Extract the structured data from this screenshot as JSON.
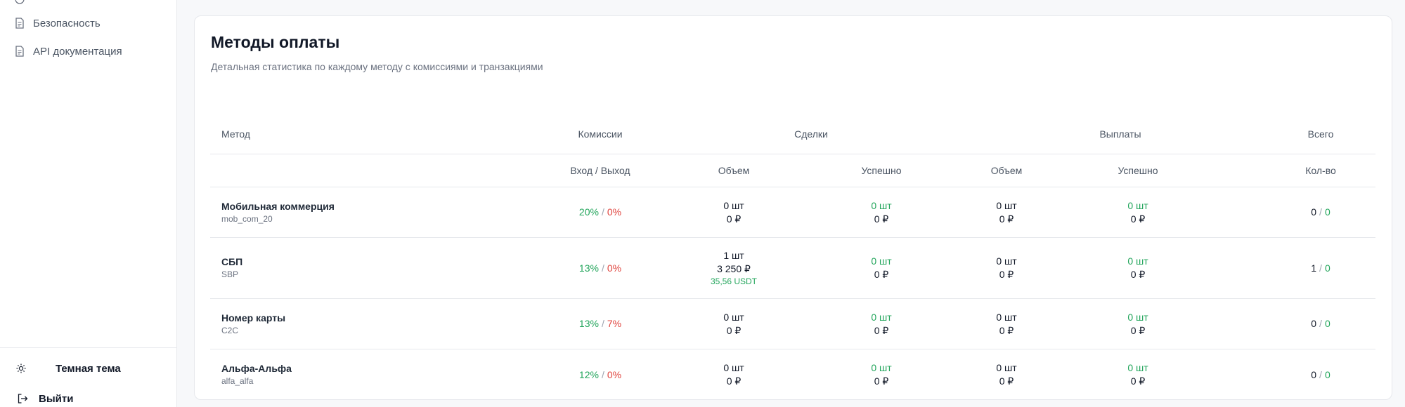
{
  "sidebar": {
    "items": [
      {
        "label": "Безопасность",
        "icon": "file-icon"
      },
      {
        "label": "API документация",
        "icon": "file-icon"
      }
    ],
    "theme_label": "Темная тема",
    "logout_label": "Выйти"
  },
  "card": {
    "title": "Методы оплаты",
    "subtitle": "Детальная статистика по каждому методу с комиссиями и транзакциями"
  },
  "table": {
    "header_groups": [
      "Метод",
      "Комиссии",
      "Сделки",
      "Выплаты",
      "Всего"
    ],
    "sub_headers": [
      "Вход / Выход",
      "Объем",
      "Успешно",
      "Объем",
      "Успешно",
      "Кол-во"
    ],
    "rows": [
      {
        "name": "Мобильная коммерция",
        "code": "mob_com_20",
        "fee_in": "20%",
        "fee_out": "0%",
        "deals_volume": {
          "count": "0 шт",
          "amount": "0 ₽",
          "usdt": ""
        },
        "deals_success": {
          "count": "0 шт",
          "amount": "0 ₽"
        },
        "payouts_volume": {
          "count": "0 шт",
          "amount": "0 ₽"
        },
        "payouts_success": {
          "count": "0 шт",
          "amount": "0 ₽"
        },
        "total_a": "0",
        "total_b": "0"
      },
      {
        "name": "СБП",
        "code": "SBP",
        "fee_in": "13%",
        "fee_out": "0%",
        "deals_volume": {
          "count": "1 шт",
          "amount": "3 250 ₽",
          "usdt": "35,56 USDT"
        },
        "deals_success": {
          "count": "0 шт",
          "amount": "0 ₽"
        },
        "payouts_volume": {
          "count": "0 шт",
          "amount": "0 ₽"
        },
        "payouts_success": {
          "count": "0 шт",
          "amount": "0 ₽"
        },
        "total_a": "1",
        "total_b": "0"
      },
      {
        "name": "Номер карты",
        "code": "C2C",
        "fee_in": "13%",
        "fee_out": "7%",
        "deals_volume": {
          "count": "0 шт",
          "amount": "0 ₽",
          "usdt": ""
        },
        "deals_success": {
          "count": "0 шт",
          "amount": "0 ₽"
        },
        "payouts_volume": {
          "count": "0 шт",
          "amount": "0 ₽"
        },
        "payouts_success": {
          "count": "0 шт",
          "amount": "0 ₽"
        },
        "total_a": "0",
        "total_b": "0"
      },
      {
        "name": "Альфа-Альфа",
        "code": "alfa_alfa",
        "fee_in": "12%",
        "fee_out": "0%",
        "deals_volume": {
          "count": "0 шт",
          "amount": "0 ₽",
          "usdt": ""
        },
        "deals_success": {
          "count": "0 шт",
          "amount": "0 ₽"
        },
        "payouts_volume": {
          "count": "0 шт",
          "amount": "0 ₽"
        },
        "payouts_success": {
          "count": "0 шт",
          "amount": "0 ₽"
        },
        "total_a": "0",
        "total_b": "0"
      }
    ]
  },
  "colors": {
    "positive": "#22a55b",
    "negative": "#e0453f",
    "border": "#e6e8ec"
  }
}
